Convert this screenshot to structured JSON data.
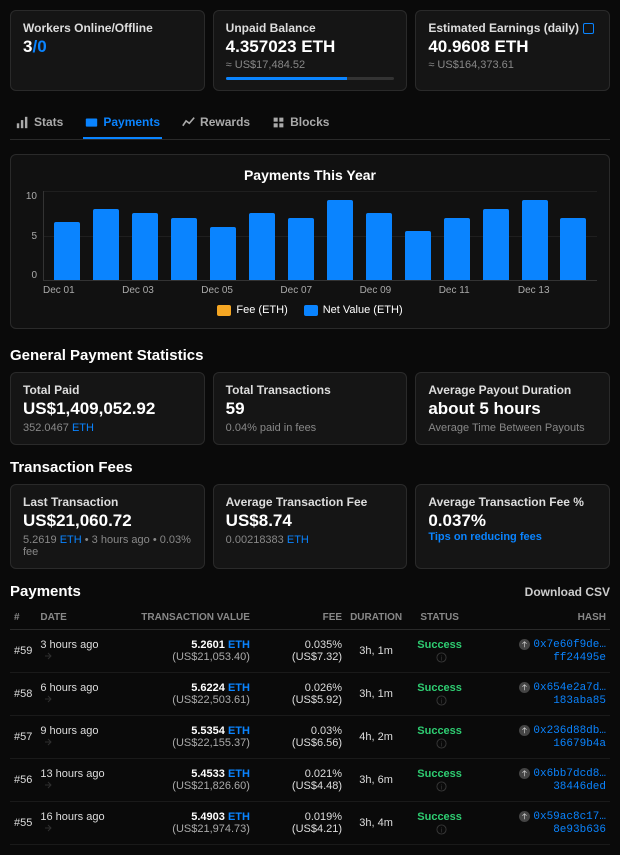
{
  "topCards": {
    "workers": {
      "label": "Workers Online/Offline",
      "online": "3",
      "offline": "0"
    },
    "unpaid": {
      "label": "Unpaid Balance",
      "value": "4.357023 ETH",
      "sub": "≈ US$17,484.52",
      "progress_pct": 72
    },
    "estimated": {
      "label": "Estimated Earnings (daily)",
      "value": "40.9608 ETH",
      "sub": "≈ US$164,373.61"
    }
  },
  "tabs": [
    {
      "label": "Stats",
      "active": false
    },
    {
      "label": "Payments",
      "active": true
    },
    {
      "label": "Rewards",
      "active": false
    },
    {
      "label": "Blocks",
      "active": false
    }
  ],
  "chart": {
    "title": "Payments This Year",
    "ylim": [
      0,
      10
    ],
    "ytick_step": 5,
    "yticks": [
      "10",
      "5",
      "0"
    ],
    "bar_color": "#0a84ff",
    "fee_color": "#f5a623",
    "bg": "#111",
    "grid_color": "#1f1f1f",
    "values": [
      6.5,
      8,
      7.5,
      7,
      6,
      7.5,
      7,
      9,
      7.5,
      5.5,
      7,
      8,
      9,
      7
    ],
    "x_labels": [
      "Dec 01",
      "Dec 03",
      "Dec 05",
      "Dec 07",
      "Dec 09",
      "Dec 11",
      "Dec 13"
    ],
    "legend": [
      {
        "label": "Fee (ETH)",
        "color": "#f5a623"
      },
      {
        "label": "Net Value (ETH)",
        "color": "#0a84ff"
      }
    ]
  },
  "general": {
    "title": "General Payment Statistics",
    "cards": {
      "total_paid": {
        "label": "Total Paid",
        "value": "US$1,409,052.92",
        "sub_amt": "352.0467",
        "sub_unit": "ETH"
      },
      "total_tx": {
        "label": "Total Transactions",
        "value": "59",
        "sub": "0.04% paid in fees"
      },
      "avg_payout": {
        "label": "Average Payout Duration",
        "value": "about 5 hours",
        "sub": "Average Time Between Payouts"
      }
    }
  },
  "fees": {
    "title": "Transaction Fees",
    "cards": {
      "last": {
        "label": "Last Transaction",
        "value": "US$21,060.72",
        "sub_amt": "5.2619",
        "sub_unit": "ETH",
        "sub_extra": " • 3 hours ago • 0.03% fee"
      },
      "avg_fee": {
        "label": "Average Transaction Fee",
        "value": "US$8.74",
        "sub_amt": "0.00218383",
        "sub_unit": "ETH"
      },
      "avg_pct": {
        "label": "Average Transaction Fee %",
        "value": "0.037%",
        "tips": "Tips on reducing fees"
      }
    }
  },
  "payments": {
    "title": "Payments",
    "download": "Download CSV",
    "headers": [
      "#",
      "DATE",
      "TRANSACTION VALUE",
      "FEE",
      "DURATION",
      "STATUS",
      "HASH"
    ],
    "rows": [
      {
        "n": "#59",
        "date": "3 hours ago",
        "eth": "5.2601",
        "usd": "(US$21,053.40)",
        "fee": "0.035% (US$7.32)",
        "dur": "3h, 1m",
        "status": "Success",
        "hash": "0x7e60f9de…ff24495e"
      },
      {
        "n": "#58",
        "date": "6 hours ago",
        "eth": "5.6224",
        "usd": "(US$22,503.61)",
        "fee": "0.026% (US$5.92)",
        "dur": "3h, 1m",
        "status": "Success",
        "hash": "0x654e2a7d…183aba85"
      },
      {
        "n": "#57",
        "date": "9 hours ago",
        "eth": "5.5354",
        "usd": "(US$22,155.37)",
        "fee": "0.03% (US$6.56)",
        "dur": "4h, 2m",
        "status": "Success",
        "hash": "0x236d88db…16679b4a"
      },
      {
        "n": "#56",
        "date": "13 hours ago",
        "eth": "5.4533",
        "usd": "(US$21,826.60)",
        "fee": "0.021% (US$4.48)",
        "dur": "3h, 6m",
        "status": "Success",
        "hash": "0x6bb7dcd8…38446ded"
      },
      {
        "n": "#55",
        "date": "16 hours ago",
        "eth": "5.4903",
        "usd": "(US$21,974.73)",
        "fee": "0.019% (US$4.21)",
        "dur": "3h, 4m",
        "status": "Success",
        "hash": "0x59ac8c17…8e93b636"
      }
    ]
  },
  "eth_symbol": "ETH"
}
